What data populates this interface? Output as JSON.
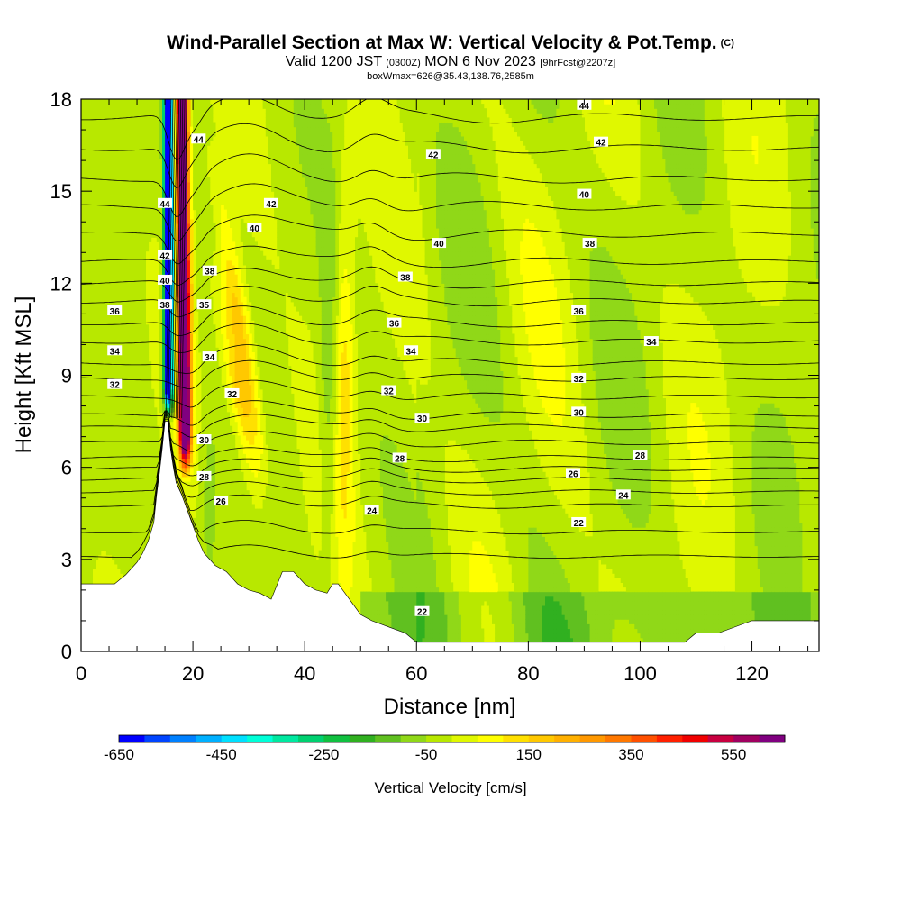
{
  "title": {
    "main": "Wind-Parallel Section at Max W: Vertical Velocity & Pot.Temp.",
    "copyright": "(C)",
    "valid_prefix": "Valid 1200 JST",
    "valid_zulu": "(0300Z)",
    "valid_date": "MON 6 Nov 2023",
    "forecast": "[9hrFcst@2207z]",
    "box_info": "boxWmax=626@35.43,138.76,2585m"
  },
  "chart_data": {
    "type": "heatmap",
    "subtype": "filled-contour cross-section with isolines",
    "xlabel": "Distance [nm]",
    "ylabel": "Height [Kft MSL]",
    "xlim": [
      0,
      132
    ],
    "ylim": [
      0,
      18
    ],
    "xticks": [
      "0",
      "20",
      "40",
      "60",
      "80",
      "100",
      "120"
    ],
    "yticks": [
      "0",
      "3",
      "6",
      "9",
      "12",
      "15",
      "18"
    ],
    "colorbar": {
      "label": "Vertical Velocity [cm/s]",
      "ticks": [
        "-650",
        "-450",
        "-250",
        "-50",
        "150",
        "350",
        "550"
      ],
      "levels": [
        -650,
        -600,
        -550,
        -500,
        -450,
        -400,
        -350,
        -300,
        -250,
        -200,
        -150,
        -100,
        -50,
        0,
        50,
        100,
        150,
        200,
        250,
        300,
        350,
        400,
        450,
        500,
        550,
        600,
        650
      ],
      "colors": [
        "#0000ff",
        "#0044ff",
        "#0080ff",
        "#00b0ff",
        "#00e0ff",
        "#00ffd8",
        "#00e8a0",
        "#00d070",
        "#10c040",
        "#30b020",
        "#60c020",
        "#90d818",
        "#b8e800",
        "#e0f800",
        "#ffff00",
        "#ffe000",
        "#ffc800",
        "#ffb000",
        "#ff9800",
        "#ff7800",
        "#ff5000",
        "#ff2000",
        "#f00000",
        "#c80040",
        "#a00060",
        "#800080"
      ]
    },
    "theta_label_values": [
      "44",
      "42",
      "40",
      "38",
      "36",
      "34",
      "32",
      "30",
      "28",
      "26",
      "24",
      "22"
    ],
    "terrain_profile": {
      "x": [
        0,
        6,
        8,
        9,
        10,
        11,
        12,
        13,
        13.5,
        14,
        14.5,
        15,
        15.5,
        16,
        16.5,
        17,
        18,
        19,
        20,
        21,
        22,
        24,
        26,
        27,
        28,
        30,
        32,
        34,
        36,
        38,
        40,
        42,
        44,
        45,
        46,
        48,
        50,
        52,
        55,
        58,
        60,
        66,
        72,
        78,
        85,
        90,
        100,
        108,
        110,
        114,
        120,
        126,
        132
      ],
      "height": [
        2.2,
        2.2,
        2.5,
        2.7,
        2.9,
        3.2,
        3.6,
        4.2,
        5.1,
        5.8,
        6.6,
        7.5,
        7.5,
        6.6,
        6.0,
        5.5,
        5.1,
        4.6,
        4.1,
        3.6,
        3.2,
        2.8,
        2.6,
        2.4,
        2.2,
        2.0,
        1.9,
        1.7,
        2.6,
        2.6,
        2.2,
        2.0,
        1.9,
        2.2,
        2.2,
        1.7,
        1.2,
        1.0,
        0.8,
        0.6,
        0.3,
        0.3,
        0.3,
        0.3,
        0.3,
        0.3,
        0.3,
        0.3,
        0.6,
        0.6,
        1.0,
        1.0,
        1.0
      ]
    },
    "theta_levels": [
      {
        "value": 22,
        "base": 3.1,
        "label_at": [
          [
            61,
            1.3
          ],
          [
            89,
            4.2
          ]
        ]
      },
      {
        "value": 23,
        "base": 3.9,
        "label_at": []
      },
      {
        "value": 24,
        "base": 4.75,
        "label_at": [
          [
            52,
            4.6
          ],
          [
            97,
            5.1
          ]
        ]
      },
      {
        "value": 25,
        "base": 5.2,
        "label_at": []
      },
      {
        "value": 26,
        "base": 5.6,
        "label_at": [
          [
            25,
            4.9
          ],
          [
            88,
            5.8
          ]
        ]
      },
      {
        "value": 27,
        "base": 5.95,
        "label_at": []
      },
      {
        "value": 28,
        "base": 6.3,
        "label_at": [
          [
            22,
            5.7
          ],
          [
            57,
            6.3
          ],
          [
            100,
            6.4
          ]
        ]
      },
      {
        "value": 29,
        "base": 6.8,
        "label_at": []
      },
      {
        "value": 30,
        "base": 7.3,
        "label_at": [
          [
            22,
            6.9
          ],
          [
            61,
            7.6
          ],
          [
            89,
            7.8
          ]
        ]
      },
      {
        "value": 31,
        "base": 7.7,
        "label_at": []
      },
      {
        "value": 32,
        "base": 8.3,
        "label_at": [
          [
            6,
            8.7
          ],
          [
            27,
            8.4
          ],
          [
            55,
            8.5
          ],
          [
            89,
            8.9
          ]
        ]
      },
      {
        "value": 33,
        "base": 8.9,
        "label_at": []
      },
      {
        "value": 34,
        "base": 9.4,
        "label_at": [
          [
            6,
            9.8
          ],
          [
            23,
            9.6
          ],
          [
            59,
            9.8
          ],
          [
            102,
            10.1
          ]
        ]
      },
      {
        "value": 35,
        "base": 10.1,
        "label_at": [
          [
            22,
            11.3
          ]
        ]
      },
      {
        "value": 36,
        "base": 10.7,
        "label_at": [
          [
            6,
            11.1
          ],
          [
            56,
            10.7
          ],
          [
            89,
            11.1
          ]
        ]
      },
      {
        "value": 37,
        "base": 11.4,
        "label_at": []
      },
      {
        "value": 38,
        "base": 12.0,
        "label_at": [
          [
            15,
            11.3
          ],
          [
            23,
            12.4
          ],
          [
            58,
            12.2
          ],
          [
            91,
            13.3
          ]
        ]
      },
      {
        "value": 39,
        "base": 12.7,
        "label_at": []
      },
      {
        "value": 40,
        "base": 13.6,
        "label_at": [
          [
            15,
            12.1
          ],
          [
            31,
            13.8
          ],
          [
            64,
            13.3
          ],
          [
            90,
            14.9
          ]
        ]
      },
      {
        "value": 41,
        "base": 14.5,
        "label_at": []
      },
      {
        "value": 42,
        "base": 15.4,
        "label_at": [
          [
            15,
            12.9
          ],
          [
            34,
            14.6
          ],
          [
            63,
            16.2
          ],
          [
            93,
            16.6
          ]
        ]
      },
      {
        "value": 43,
        "base": 16.4,
        "label_at": []
      },
      {
        "value": 44,
        "base": 17.4,
        "label_at": [
          [
            15,
            14.6
          ],
          [
            21,
            16.7
          ],
          [
            90,
            17.8
          ]
        ]
      }
    ]
  }
}
